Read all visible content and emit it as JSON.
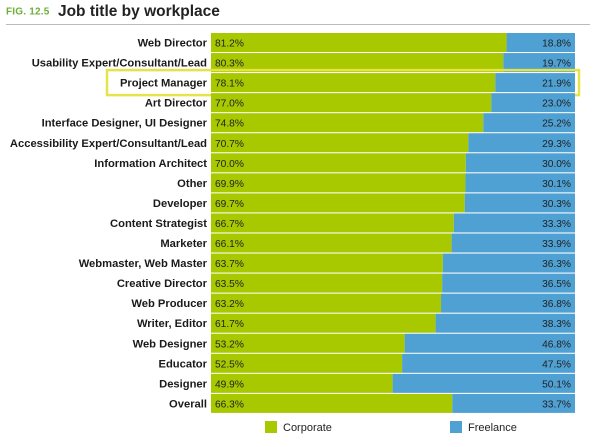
{
  "figure": {
    "label": "FIG. 12.5",
    "title": "Job title by workplace"
  },
  "chart_data": {
    "type": "bar",
    "stacked": true,
    "orientation": "horizontal",
    "title": "Job title by workplace",
    "xlim": [
      0,
      100
    ],
    "unit": "%",
    "grid": false,
    "legend_position": "bottom",
    "highlighted_category": "Project Manager",
    "categories": [
      "Web Director",
      "Usability Expert/Consultant/Lead",
      "Project Manager",
      "Art Director",
      "Interface Designer, UI Designer",
      "Accessibility Expert/Consultant/Lead",
      "Information Architect",
      "Other",
      "Developer",
      "Content Strategist",
      "Marketer",
      "Webmaster, Web Master",
      "Creative Director",
      "Web Producer",
      "Writer, Editor",
      "Web Designer",
      "Educator",
      "Designer",
      "Overall"
    ],
    "series": [
      {
        "name": "Corporate",
        "color": "#a8c800",
        "values": [
          81.2,
          80.3,
          78.1,
          77.0,
          74.8,
          70.7,
          70.0,
          69.9,
          69.7,
          66.7,
          66.1,
          63.7,
          63.5,
          63.2,
          61.7,
          53.2,
          52.5,
          49.9,
          66.3
        ],
        "labels": [
          "81.2%",
          "80.3%",
          "78.1%",
          "77.0%",
          "74.8%",
          "70.7%",
          "70.0%",
          "69.9%",
          "69.7%",
          "66.7%",
          "66.1%",
          "63.7%",
          "63.5%",
          "63.2%",
          "61.7%",
          "53.2%",
          "52.5%",
          "49.9%",
          "66.3%"
        ]
      },
      {
        "name": "Freelance",
        "color": "#4fa0d3",
        "values": [
          18.8,
          19.7,
          21.9,
          23.0,
          25.2,
          29.3,
          30.0,
          30.1,
          30.3,
          33.3,
          33.9,
          36.3,
          36.5,
          36.8,
          38.3,
          46.8,
          47.5,
          50.1,
          33.7
        ],
        "labels": [
          "18.8%",
          "19.7%",
          "21.9%",
          "23.0%",
          "25.2%",
          "29.3%",
          "30.0%",
          "30.1%",
          "30.3%",
          "33.3%",
          "33.9%",
          "36.3%",
          "36.5%",
          "36.8%",
          "38.3%",
          "46.8%",
          "47.5%",
          "50.1%",
          "33.7%"
        ]
      }
    ],
    "colors": {
      "highlight_border": "#e6e24a",
      "row_divider": "#ffffff"
    }
  }
}
